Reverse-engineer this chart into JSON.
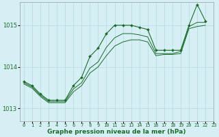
{
  "title": "Graphe pression niveau de la mer (hPa)",
  "bg_color": "#d6eff5",
  "grid_color": "#b8dde6",
  "line_color": "#1a6b2a",
  "marker_color": "#1a6b2a",
  "ylim": [
    1012.7,
    1015.55
  ],
  "xlim": [
    -0.5,
    23
  ],
  "yticks": [
    1013,
    1014,
    1015
  ],
  "xtick_labels": [
    "0",
    "1",
    "2",
    "3",
    "4",
    "5",
    "6",
    "7",
    "8",
    "9",
    "10",
    "11",
    "12",
    "13",
    "14",
    "15",
    "16",
    "17",
    "18",
    "19",
    "20",
    "21",
    "22",
    "23"
  ],
  "series": [
    [
      1013.65,
      1013.55,
      1013.35,
      1013.2,
      1013.2,
      1013.2,
      1013.55,
      1013.75,
      1014.25,
      1014.45,
      1014.8,
      1015.0,
      1015.0,
      1015.0,
      1014.95,
      1014.9,
      1014.4,
      1014.4,
      1014.4,
      1014.4,
      1015.0,
      1015.5,
      1015.1
    ],
    [
      1013.62,
      1013.52,
      1013.32,
      1013.17,
      1013.17,
      1013.17,
      1013.47,
      1013.62,
      1013.97,
      1014.12,
      1014.47,
      1014.7,
      1014.8,
      1014.8,
      1014.77,
      1014.72,
      1014.32,
      1014.32,
      1014.32,
      1014.37,
      1014.97,
      1015.07,
      1015.07
    ],
    [
      1013.59,
      1013.49,
      1013.29,
      1013.14,
      1013.14,
      1013.14,
      1013.4,
      1013.55,
      1013.85,
      1014.0,
      1014.27,
      1014.5,
      1014.6,
      1014.65,
      1014.65,
      1014.6,
      1014.27,
      1014.3,
      1014.3,
      1014.32,
      1014.92,
      1014.97,
      1015.0
    ]
  ],
  "figsize": [
    3.2,
    2.0
  ],
  "dpi": 100
}
